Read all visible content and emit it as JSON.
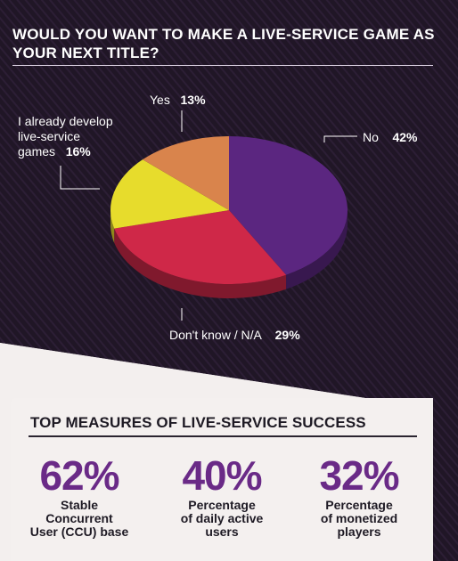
{
  "title": "WOULD YOU WANT TO MAKE A LIVE-SERVICE GAME AS YOUR NEXT TITLE?",
  "chart_data": {
    "type": "pie",
    "title": "WOULD YOU WANT TO MAKE A LIVE-SERVICE GAME AS YOUR NEXT TITLE?",
    "slices": [
      {
        "label": "No",
        "value": 42,
        "display": "42%",
        "color": "#5b2680"
      },
      {
        "label": "Don't know / N/A",
        "value": 29,
        "display": "29%",
        "color": "#cf2848"
      },
      {
        "label": "I already develop live-service games",
        "value": 16,
        "display": "16%",
        "color": "#e7dc2c"
      },
      {
        "label": "Yes",
        "value": 13,
        "display": "13%",
        "color": "#d9844c"
      }
    ],
    "legend": "none"
  },
  "labels": {
    "yes": {
      "name": "Yes",
      "pct": "13%"
    },
    "no": {
      "name": "No",
      "pct": "42%"
    },
    "already_line1": "I already develop",
    "already_line2": "live-service",
    "already_line3": "games",
    "already_pct": "16%",
    "dontknow": {
      "name": "Don't know / N/A",
      "pct": "29%"
    }
  },
  "measures": {
    "title": "TOP MEASURES OF LIVE-SERVICE SUCCESS",
    "items": [
      {
        "value": "62%",
        "line1": "Stable",
        "line2": "Concurrent",
        "line3": "User (CCU) base"
      },
      {
        "value": "40%",
        "line1": "Percentage",
        "line2": "of daily active",
        "line3": "users"
      },
      {
        "value": "32%",
        "line1": "Percentage",
        "line2": "of monetized",
        "line3": "players"
      }
    ]
  },
  "colors": {
    "background_dark": "#1f1626",
    "accent_purple": "#6a2a87"
  }
}
